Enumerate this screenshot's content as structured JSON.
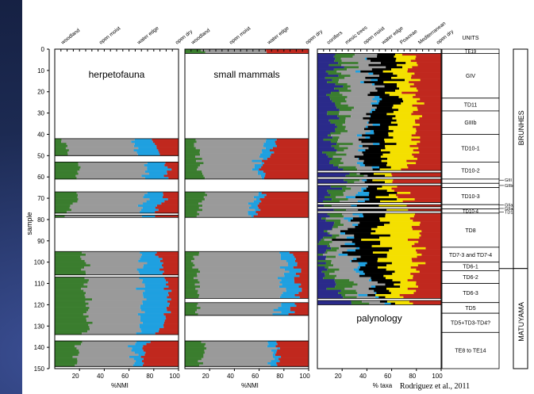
{
  "figure": {
    "ylabel": "sample",
    "y_ticks": [
      0,
      10,
      20,
      30,
      40,
      50,
      60,
      70,
      80,
      90,
      100,
      110,
      120,
      130,
      140,
      150
    ],
    "citation": "Rodriguez et al., 2011",
    "units_header": "UNITS",
    "magnetic_zones": [
      "BRUNHES",
      "MATUYAMA"
    ]
  },
  "chart_data": [
    {
      "type": "area",
      "title": "herpetofauna",
      "xlabel": "%NMI",
      "xlim": [
        0,
        100
      ],
      "x_ticks": [
        20,
        40,
        60,
        80,
        100
      ],
      "ylim": [
        0,
        150
      ],
      "categories": [
        "woodland",
        "open moist",
        "water edge",
        "open dry"
      ],
      "colors": [
        "#3a7d2e",
        "#9a9a9a",
        "#1fa0e0",
        "#c0281e"
      ],
      "bands": [
        [
          42,
          50
        ],
        [
          53,
          61
        ],
        [
          67,
          77
        ],
        [
          78,
          79
        ],
        [
          95,
          106
        ],
        [
          107,
          134
        ],
        [
          137,
          149
        ]
      ],
      "anchors": [
        {
          "y": 42,
          "values": [
            5,
            55,
            16,
            24
          ]
        },
        {
          "y": 55,
          "values": [
            20,
            55,
            17,
            8
          ]
        },
        {
          "y": 70,
          "values": [
            20,
            55,
            14,
            11
          ]
        },
        {
          "y": 78,
          "values": [
            10,
            60,
            10,
            20
          ]
        },
        {
          "y": 100,
          "values": [
            25,
            45,
            15,
            15
          ]
        },
        {
          "y": 115,
          "values": [
            25,
            45,
            22,
            8
          ]
        },
        {
          "y": 130,
          "values": [
            28,
            42,
            20,
            10
          ]
        },
        {
          "y": 140,
          "values": [
            18,
            45,
            10,
            27
          ]
        },
        {
          "y": 149,
          "values": [
            16,
            50,
            6,
            28
          ]
        }
      ]
    },
    {
      "type": "area",
      "title": "small mammals",
      "xlabel": "%NMI",
      "xlim": [
        0,
        100
      ],
      "x_ticks": [
        20,
        40,
        60,
        80,
        100
      ],
      "ylim": [
        0,
        150
      ],
      "categories": [
        "woodland",
        "open moist",
        "water edge",
        "open dry"
      ],
      "colors": [
        "#3a7d2e",
        "#9a9a9a",
        "#1fa0e0",
        "#c0281e"
      ],
      "bands": [
        [
          0,
          2
        ],
        [
          42,
          61
        ],
        [
          67,
          79
        ],
        [
          95,
          117
        ],
        [
          119,
          125
        ],
        [
          137,
          149
        ]
      ],
      "anchors": [
        {
          "y": 1,
          "values": [
            15,
            50,
            0,
            35
          ]
        },
        {
          "y": 45,
          "values": [
            10,
            55,
            8,
            27
          ]
        },
        {
          "y": 55,
          "values": [
            12,
            45,
            5,
            38
          ]
        },
        {
          "y": 70,
          "values": [
            15,
            42,
            6,
            37
          ]
        },
        {
          "y": 78,
          "values": [
            12,
            40,
            5,
            43
          ]
        },
        {
          "y": 100,
          "values": [
            8,
            72,
            10,
            10
          ]
        },
        {
          "y": 115,
          "values": [
            10,
            68,
            14,
            8
          ]
        },
        {
          "y": 122,
          "values": [
            10,
            65,
            12,
            13
          ]
        },
        {
          "y": 140,
          "values": [
            15,
            55,
            4,
            26
          ]
        },
        {
          "y": 149,
          "values": [
            12,
            58,
            4,
            26
          ]
        }
      ]
    },
    {
      "type": "area",
      "title": "palynology",
      "xlabel": "% taxa",
      "xlim": [
        0,
        100
      ],
      "x_ticks": [
        20,
        40,
        60,
        80,
        100
      ],
      "ylim": [
        0,
        150
      ],
      "categories": [
        "conifers",
        "mesic trees",
        "open moist",
        "water edge",
        "Poaceae",
        "Mediterranean",
        "open dry"
      ],
      "colors": [
        "#2a2a8a",
        "#3a7d2e",
        "#9a9a9a",
        "#1fa0e0",
        "#000000",
        "#f4e000",
        "#c0281e"
      ],
      "bands": [
        [
          2,
          57
        ],
        [
          58,
          60
        ],
        [
          61,
          63
        ],
        [
          64,
          72
        ],
        [
          73,
          74
        ],
        [
          75,
          76
        ],
        [
          77,
          117
        ],
        [
          118,
          120
        ]
      ],
      "anchors": [
        {
          "y": 5,
          "values": [
            12,
            10,
            20,
            1,
            20,
            12,
            25
          ]
        },
        {
          "y": 20,
          "values": [
            14,
            12,
            22,
            2,
            14,
            16,
            20
          ]
        },
        {
          "y": 35,
          "values": [
            12,
            8,
            20,
            2,
            18,
            20,
            20
          ]
        },
        {
          "y": 50,
          "values": [
            10,
            10,
            15,
            2,
            18,
            25,
            20
          ]
        },
        {
          "y": 60,
          "values": [
            22,
            10,
            6,
            0,
            10,
            12,
            40
          ]
        },
        {
          "y": 70,
          "values": [
            8,
            12,
            15,
            4,
            20,
            10,
            31
          ]
        },
        {
          "y": 80,
          "values": [
            10,
            8,
            12,
            2,
            18,
            30,
            20
          ]
        },
        {
          "y": 90,
          "values": [
            5,
            5,
            10,
            3,
            25,
            32,
            20
          ]
        },
        {
          "y": 100,
          "values": [
            6,
            6,
            20,
            3,
            22,
            23,
            20
          ]
        },
        {
          "y": 110,
          "values": [
            12,
            12,
            18,
            3,
            14,
            17,
            24
          ]
        },
        {
          "y": 119,
          "values": [
            22,
            8,
            10,
            4,
            8,
            20,
            28
          ]
        }
      ]
    }
  ],
  "units": [
    {
      "label": "TE19",
      "y0": 0,
      "y1": 2
    },
    {
      "label": "GIV",
      "y0": 2,
      "y1": 23
    },
    {
      "label": "TD11",
      "y0": 23,
      "y1": 29
    },
    {
      "label": "GIIIb",
      "y0": 29,
      "y1": 40
    },
    {
      "label": "TD10-1",
      "y0": 40,
      "y1": 53
    },
    {
      "label": "TD10-2",
      "y0": 53,
      "y1": 61
    },
    {
      "label": "",
      "y0": 61,
      "y1": 63
    },
    {
      "label": "",
      "y0": 63,
      "y1": 65
    },
    {
      "label": "TD10-3",
      "y0": 65,
      "y1": 73
    },
    {
      "label": "",
      "y0": 73,
      "y1": 75
    },
    {
      "label": "TD10-4",
      "y0": 75,
      "y1": 77
    },
    {
      "label": "TD8",
      "y0": 77,
      "y1": 93
    },
    {
      "label": "TD7-3 and TD7-4",
      "y0": 93,
      "y1": 100
    },
    {
      "label": "TD6-1",
      "y0": 100,
      "y1": 104
    },
    {
      "label": "TD6-2",
      "y0": 104,
      "y1": 110
    },
    {
      "label": "TD6-3",
      "y0": 110,
      "y1": 119
    },
    {
      "label": "TD5",
      "y0": 119,
      "y1": 124
    },
    {
      "label": "TD5+TD3-TD4?",
      "y0": 124,
      "y1": 133
    },
    {
      "label": "TE8 to TE14",
      "y0": 133,
      "y1": 150
    }
  ],
  "side_labels": [
    {
      "text": "GIII",
      "y": 61.5
    },
    {
      "text": "GIIb",
      "y": 64
    },
    {
      "text": "GIIab",
      "y": 73.2
    },
    {
      "text": "GIIa",
      "y": 74.8
    },
    {
      "text": "TD10-4",
      "y": 76.4
    }
  ],
  "colors": {
    "woodland": "#3a7d2e",
    "open_moist": "#9a9a9a",
    "water_edge": "#1fa0e0",
    "open_dry": "#c0281e",
    "conifers": "#2a2a8a",
    "poaceae": "#000000",
    "mediterranean": "#f4e000",
    "slide_background": "#1c2a52"
  }
}
